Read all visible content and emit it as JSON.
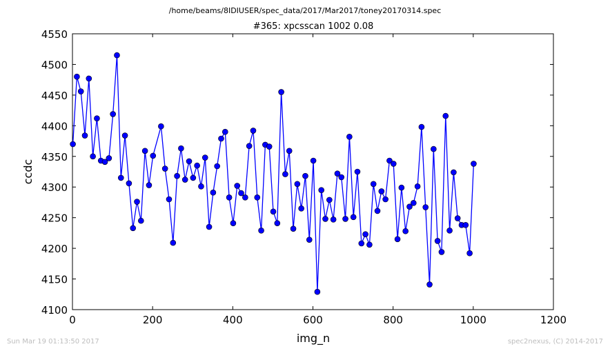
{
  "chart_data": {
    "type": "line",
    "suptitle": "/home/beams/8IDIUSER/spec_data/2017/Mar2017/toney20170314.spec",
    "title": "#365: xpcsscan 1002 0.08",
    "xlabel": "img_n",
    "ylabel": "ccdc",
    "xlim": [
      0,
      1200
    ],
    "ylim": [
      4100,
      4550
    ],
    "xticks": [
      0,
      200,
      400,
      600,
      800,
      1000,
      1200
    ],
    "yticks": [
      4100,
      4150,
      4200,
      4250,
      4300,
      4350,
      4400,
      4450,
      4500,
      4550
    ],
    "grid": false,
    "color": "#0000ff",
    "x": [
      1,
      11,
      21,
      31,
      41,
      51,
      61,
      71,
      81,
      91,
      101,
      111,
      121,
      131,
      141,
      151,
      161,
      171,
      181,
      191,
      201,
      221,
      231,
      241,
      251,
      261,
      271,
      281,
      291,
      301,
      311,
      321,
      331,
      341,
      351,
      361,
      371,
      381,
      391,
      401,
      411,
      421,
      431,
      441,
      451,
      461,
      471,
      481,
      491,
      501,
      511,
      521,
      531,
      541,
      551,
      561,
      571,
      581,
      591,
      601,
      611,
      621,
      631,
      641,
      651,
      661,
      671,
      681,
      691,
      701,
      711,
      721,
      731,
      741,
      751,
      761,
      771,
      781,
      791,
      801,
      811,
      821,
      831,
      841,
      851,
      861,
      871,
      881,
      891,
      901,
      911,
      921,
      931,
      941,
      951,
      961,
      971,
      981,
      991,
      1001
    ],
    "y": [
      4370,
      4480,
      4456,
      4384,
      4477,
      4350,
      4412,
      4343,
      4341,
      4347,
      4419,
      4515,
      4315,
      4384,
      4306,
      4233,
      4276,
      4245,
      4359,
      4303,
      4351,
      4399,
      4330,
      4280,
      4209,
      4318,
      4363,
      4312,
      4342,
      4315,
      4335,
      4301,
      4348,
      4235,
      4291,
      4334,
      4379,
      4390,
      4283,
      4241,
      4302,
      4290,
      4283,
      4367,
      4392,
      4283,
      4229,
      4369,
      4366,
      4260,
      4241,
      4455,
      4321,
      4359,
      4232,
      4305,
      4265,
      4318,
      4214,
      4343,
      4129,
      4295,
      4248,
      4279,
      4247,
      4322,
      4316,
      4248,
      4382,
      4251,
      4325,
      4208,
      4223,
      4206,
      4305,
      4261,
      4293,
      4280,
      4343,
      4338,
      4215,
      4299,
      4228,
      4268,
      4274,
      4301,
      4398,
      4267,
      4141,
      4362,
      4212,
      4194,
      4416,
      4229,
      4324,
      4249,
      4238,
      4238,
      4192,
      4338
    ]
  },
  "footer": {
    "timestamp": "Sun Mar 19 01:13:50 2017",
    "credit": "spec2nexus, (C) 2014-2017"
  }
}
